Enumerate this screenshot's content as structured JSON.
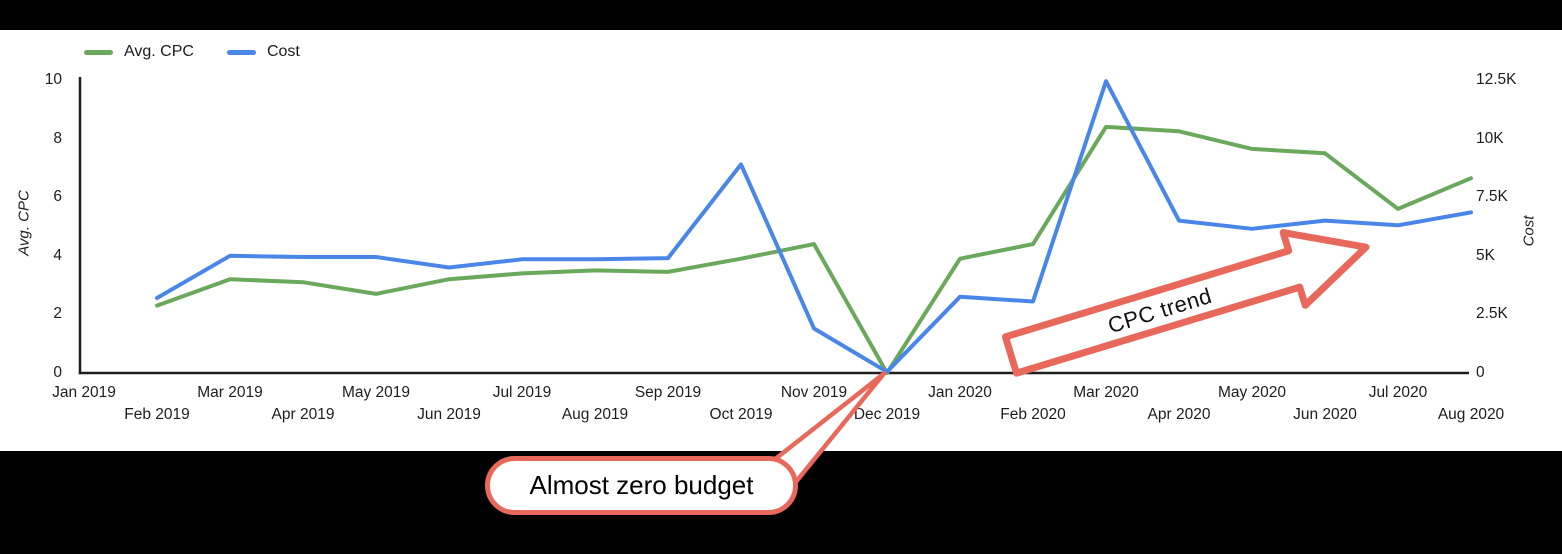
{
  "page": {
    "background": "#000000",
    "canvas_background": "#ffffff"
  },
  "chart_data": {
    "type": "line",
    "title": "",
    "categories": [
      "Feb 2019",
      "Mar 2019",
      "Apr 2019",
      "May 2019",
      "Jun 2019",
      "Jul 2019",
      "Aug 2019",
      "Sep 2019",
      "Oct 2019",
      "Nov 2019",
      "Dec 2019",
      "Jan 2020",
      "Feb 2020",
      "Mar 2020",
      "Apr 2020",
      "May 2020",
      "Jun 2020",
      "Jul 2020",
      "Aug 2020"
    ],
    "series": [
      {
        "name": "Avg. CPC",
        "axis": "left",
        "color": "#6aa85c",
        "values": [
          2.3,
          3.2,
          3.1,
          2.7,
          3.2,
          3.4,
          3.5,
          3.45,
          3.9,
          4.4,
          0,
          3.9,
          4.4,
          8.4,
          8.25,
          7.65,
          7.5,
          5.6,
          6.65
        ]
      },
      {
        "name": "Cost",
        "axis": "right",
        "color": "#4a86e8",
        "values": [
          3200,
          5000,
          4950,
          4950,
          4500,
          4850,
          4850,
          4900,
          8900,
          1900,
          50,
          3250,
          3050,
          12450,
          6500,
          6150,
          6500,
          6300,
          6850
        ]
      }
    ],
    "x_axis": {
      "tick_labels": [
        "Jan 2019",
        "Feb 2019",
        "Mar 2019",
        "Apr 2019",
        "May 2019",
        "Jun 2019",
        "Jul 2019",
        "Aug 2019",
        "Sep 2019",
        "Oct 2019",
        "Nov 2019",
        "Dec 2019",
        "Jan 2020",
        "Feb 2020",
        "Mar 2020",
        "Apr 2020",
        "May 2020",
        "Jun 2020",
        "Jul 2020",
        "Aug 2020"
      ]
    },
    "y_axis_left": {
      "label": "Avg. CPC",
      "ticks": [
        "0",
        "2",
        "4",
        "6",
        "8",
        "10"
      ],
      "range": [
        0,
        10
      ]
    },
    "y_axis_right": {
      "label": "Cost",
      "ticks": [
        "0",
        "2.5K",
        "5K",
        "7.5K",
        "10K",
        "12.5K"
      ],
      "range": [
        0,
        12500
      ]
    },
    "grid": "off",
    "legend_position": "top-left",
    "axis_color": "#1e1e1e"
  },
  "annotations": {
    "arrow_label": "CPC trend",
    "callout_text": "Almost zero budget",
    "accent_color": "#e8695b"
  }
}
